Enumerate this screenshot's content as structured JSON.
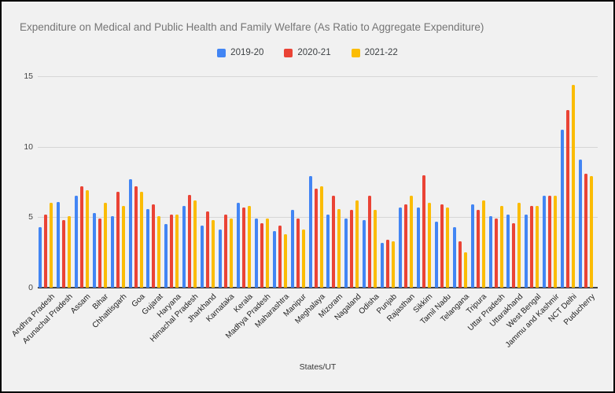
{
  "window": {
    "background": "#f1f1f1",
    "border_color": "#000000"
  },
  "chart_data": {
    "type": "bar",
    "title": "Expenditure on Medical and Public Health and Family Welfare (As Ratio to Aggregate Expenditure)",
    "xlabel": "States/UT",
    "ylabel": "",
    "ylim": [
      0,
      15
    ],
    "yticks": [
      0,
      5,
      10,
      15
    ],
    "grid": true,
    "legend_position": "top-center",
    "categories": [
      "Andhra Pradesh",
      "Arunachal Pradesh",
      "Assam",
      "Bihar",
      "Chhattisgarh",
      "Goa",
      "Gujarat",
      "Haryana",
      "Himachal Pradesh",
      "Jharkhand",
      "Karnataka",
      "Kerala",
      "Madhya Pradesh",
      "Maharashtra",
      "Manipur",
      "Meghalaya",
      "Mizoram",
      "Nagaland",
      "Odisha",
      "Punjab",
      "Rajasthan",
      "Sikkim",
      "Tamil Nadu",
      "Telangana",
      "Tripura",
      "Uttar Pradesh",
      "Uttarakhand",
      "West Bengal",
      "Jammu and Kashmir",
      "NCT Delhi",
      "Puducherry"
    ],
    "series": [
      {
        "name": "2019-20",
        "color": "#4285F4",
        "values": [
          4.3,
          6.1,
          6.5,
          5.3,
          5.1,
          7.7,
          5.6,
          4.5,
          5.8,
          4.4,
          4.1,
          6.0,
          4.9,
          4.0,
          5.5,
          7.9,
          5.2,
          4.9,
          4.8,
          3.2,
          5.7,
          5.7,
          4.7,
          4.3,
          5.9,
          5.1,
          5.2,
          5.2,
          6.5,
          11.2,
          9.1
        ]
      },
      {
        "name": "2020-21",
        "color": "#EA4335",
        "values": [
          5.2,
          4.8,
          7.2,
          4.9,
          6.8,
          7.2,
          5.9,
          5.2,
          6.6,
          5.4,
          5.2,
          5.7,
          4.6,
          4.4,
          4.9,
          7.0,
          6.5,
          5.5,
          6.5,
          3.4,
          5.9,
          8.0,
          5.9,
          3.3,
          5.5,
          4.9,
          4.6,
          5.8,
          6.5,
          12.6,
          8.1
        ]
      },
      {
        "name": "2021-22",
        "color": "#FBBC04",
        "values": [
          6.0,
          5.1,
          6.9,
          6.0,
          5.8,
          6.8,
          5.1,
          5.2,
          6.2,
          4.8,
          4.9,
          5.8,
          4.9,
          3.8,
          4.1,
          7.2,
          5.6,
          6.2,
          5.5,
          3.3,
          6.5,
          6.0,
          5.7,
          2.5,
          6.2,
          5.8,
          6.0,
          5.8,
          6.5,
          14.4,
          7.9
        ]
      }
    ]
  }
}
